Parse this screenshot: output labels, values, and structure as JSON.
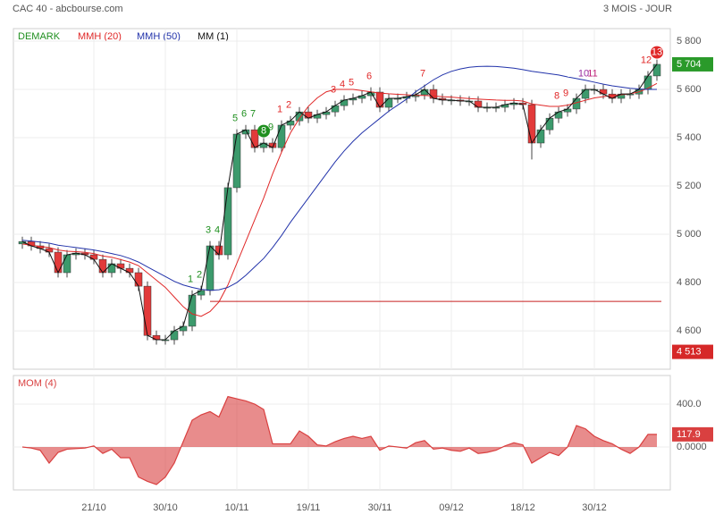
{
  "chart_data": [
    {
      "type": "candlestick",
      "title": "CAC 40 - abcbourse.com",
      "subtitle": "3 MOIS - JOUR",
      "categories": [
        null,
        null,
        null,
        null,
        null,
        null,
        null,
        null,
        "21/10",
        null,
        null,
        null,
        null,
        null,
        null,
        null,
        "30/10",
        null,
        null,
        null,
        null,
        null,
        null,
        null,
        "10/11",
        null,
        null,
        null,
        null,
        null,
        null,
        null,
        "19/11",
        null,
        null,
        null,
        null,
        null,
        null,
        null,
        "30/11",
        null,
        null,
        null,
        null,
        null,
        null,
        null,
        "09/12",
        null,
        null,
        null,
        null,
        null,
        null,
        null,
        "18/12",
        null,
        null,
        null,
        null,
        null,
        null,
        null,
        "30/12",
        null,
        null,
        null,
        null,
        null,
        null,
        null
      ],
      "open": [
        4960,
        4970,
        4952,
        4941,
        4926,
        4841,
        4915,
        4922,
        4915,
        4896,
        4841,
        4878,
        4859,
        4841,
        4785,
        4581,
        4563,
        4563,
        4600,
        4619,
        4748,
        4767,
        4952,
        4915,
        5193,
        5415,
        5433,
        5359,
        5378,
        5359,
        5452,
        5470,
        5507,
        5481,
        5496,
        5507,
        5533,
        5556,
        5563,
        5574,
        5589,
        5526,
        5563,
        5563,
        5570,
        5578,
        5600,
        5563,
        5556,
        5556,
        5552,
        5552,
        5526,
        5526,
        5526,
        5537,
        5544,
        5537,
        5378,
        5433,
        5481,
        5507,
        5519,
        5563,
        5600,
        5600,
        5581,
        5563,
        5581,
        5581,
        5600,
        5656
      ],
      "high": [
        4990,
        4990,
        4972,
        4961,
        4946,
        4935,
        4942,
        4942,
        4935,
        4916,
        4898,
        4898,
        4879,
        4861,
        4805,
        4601,
        4583,
        4620,
        4639,
        4768,
        4787,
        4972,
        4972,
        5213,
        5435,
        5453,
        5453,
        5398,
        5398,
        5472,
        5490,
        5527,
        5527,
        5516,
        5527,
        5553,
        5576,
        5583,
        5594,
        5609,
        5609,
        5583,
        5583,
        5590,
        5598,
        5620,
        5620,
        5583,
        5576,
        5576,
        5572,
        5572,
        5546,
        5546,
        5557,
        5564,
        5564,
        5557,
        5453,
        5501,
        5527,
        5539,
        5583,
        5620,
        5620,
        5620,
        5601,
        5601,
        5601,
        5620,
        5676,
        5724
      ],
      "low": [
        4940,
        4932,
        4921,
        4906,
        4821,
        4821,
        4895,
        4895,
        4876,
        4821,
        4821,
        4839,
        4821,
        4765,
        4561,
        4543,
        4543,
        4543,
        4580,
        4599,
        4728,
        4747,
        4895,
        4895,
        5173,
        5395,
        5339,
        5339,
        5339,
        5339,
        5432,
        5450,
        5461,
        5461,
        5476,
        5487,
        5513,
        5536,
        5543,
        5554,
        5506,
        5506,
        5543,
        5543,
        5550,
        5558,
        5543,
        5536,
        5536,
        5532,
        5532,
        5506,
        5506,
        5506,
        5506,
        5517,
        5517,
        5310,
        5358,
        5413,
        5461,
        5487,
        5499,
        5543,
        5580,
        5561,
        5543,
        5543,
        5561,
        5561,
        5580,
        5636
      ],
      "close": [
        4970,
        4952,
        4941,
        4926,
        4841,
        4915,
        4922,
        4915,
        4896,
        4841,
        4878,
        4859,
        4841,
        4785,
        4581,
        4563,
        4563,
        4600,
        4619,
        4748,
        4767,
        4952,
        4915,
        5193,
        5415,
        5433,
        5359,
        5378,
        5359,
        5452,
        5470,
        5507,
        5481,
        5496,
        5507,
        5533,
        5556,
        5563,
        5574,
        5589,
        5526,
        5563,
        5563,
        5570,
        5578,
        5600,
        5563,
        5556,
        5556,
        5552,
        5552,
        5526,
        5526,
        5526,
        5537,
        5544,
        5537,
        5378,
        5433,
        5481,
        5507,
        5519,
        5563,
        5600,
        5600,
        5581,
        5563,
        5581,
        5581,
        5600,
        5656,
        5704
      ],
      "up_color": "#3c9a6c",
      "down_color": "#e23a3a",
      "close_series": {
        "name": "MM (1)",
        "color": "#111111"
      },
      "demark_title": "DEMARK",
      "demark_title_color": "#1f8f1f",
      "series": [
        {
          "name": "MMH (20)",
          "color": "#e02828",
          "values": [
            4960,
            4955,
            4950,
            4945,
            4935,
            4930,
            4928,
            4925,
            4920,
            4910,
            4905,
            4895,
            4885,
            4870,
            4840,
            4810,
            4780,
            4740,
            4700,
            4670,
            4660,
            4680,
            4720,
            4790,
            4880,
            4970,
            5060,
            5150,
            5250,
            5340,
            5420,
            5480,
            5530,
            5565,
            5590,
            5600,
            5600,
            5600,
            5595,
            5590,
            5585,
            5582,
            5580,
            5578,
            5575,
            5575,
            5573,
            5570,
            5568,
            5565,
            5562,
            5560,
            5558,
            5556,
            5555,
            5555,
            5552,
            5540,
            5535,
            5530,
            5530,
            5535,
            5545,
            5555,
            5565,
            5570,
            5575,
            5578,
            5582,
            5590,
            5605,
            5625
          ]
        },
        {
          "name": "MMH (50)",
          "color": "#2233aa",
          "values": [
            4975,
            4972,
            4968,
            4963,
            4955,
            4950,
            4945,
            4940,
            4935,
            4928,
            4920,
            4912,
            4900,
            4885,
            4865,
            4845,
            4825,
            4805,
            4790,
            4780,
            4772,
            4768,
            4770,
            4780,
            4800,
            4830,
            4865,
            4900,
            4945,
            4995,
            5050,
            5100,
            5150,
            5200,
            5250,
            5300,
            5345,
            5385,
            5420,
            5450,
            5480,
            5510,
            5535,
            5560,
            5590,
            5615,
            5640,
            5660,
            5675,
            5685,
            5692,
            5695,
            5696,
            5695,
            5692,
            5688,
            5682,
            5675,
            5670,
            5665,
            5660,
            5652,
            5645,
            5638,
            5630,
            5622,
            5615,
            5610,
            5605,
            5602,
            5600,
            5600
          ]
        }
      ],
      "demark": [
        {
          "index": 19,
          "label": "1",
          "color": "#1f8f1f"
        },
        {
          "index": 20,
          "label": "2",
          "color": "#1f8f1f"
        },
        {
          "index": 21,
          "label": "3",
          "color": "#1f8f1f"
        },
        {
          "index": 22,
          "label": "4",
          "color": "#1f8f1f"
        },
        {
          "index": 24,
          "label": "5",
          "color": "#1f8f1f"
        },
        {
          "index": 25,
          "label": "6",
          "color": "#1f8f1f"
        },
        {
          "index": 26,
          "label": "7",
          "color": "#1f8f1f"
        },
        {
          "index": 27,
          "label": "8",
          "color": "#1f8f1f",
          "circled": true
        },
        {
          "index": 28,
          "label": "9",
          "color": "#1f8f1f"
        },
        {
          "index": 29,
          "label": "1",
          "color": "#e02828"
        },
        {
          "index": 30,
          "label": "2",
          "color": "#e02828"
        },
        {
          "index": 35,
          "label": "3",
          "color": "#e02828"
        },
        {
          "index": 36,
          "label": "4",
          "color": "#e02828"
        },
        {
          "index": 37,
          "label": "5",
          "color": "#e02828"
        },
        {
          "index": 39,
          "label": "6",
          "color": "#e02828"
        },
        {
          "index": 45,
          "label": "7",
          "color": "#e02828"
        },
        {
          "index": 60,
          "label": "8",
          "color": "#e02828"
        },
        {
          "index": 61,
          "label": "9",
          "color": "#e02828"
        },
        {
          "index": 63,
          "label": "10",
          "color": "#9a2aa0"
        },
        {
          "index": 64,
          "label": "11",
          "color": "#c0207a"
        },
        {
          "index": 70,
          "label": "12",
          "color": "#e02828"
        },
        {
          "index": 71,
          "label": "13",
          "color": "#e02828",
          "circled": true
        }
      ],
      "hline": {
        "value": 4722,
        "start": 21,
        "color": "#c82020"
      },
      "last_label": {
        "value": 5704,
        "label": "5 704",
        "color": "#2a9a2a"
      },
      "low_label": {
        "value": 4513,
        "label": "4 513",
        "color": "#d62828"
      },
      "ylim": [
        4441,
        5852
      ],
      "yticks": [
        {
          "value": 4600,
          "label": "4 600"
        },
        {
          "value": 4800,
          "label": "4 800"
        },
        {
          "value": 5000,
          "label": "5 000"
        },
        {
          "value": 5200,
          "label": "5 200"
        },
        {
          "value": 5400,
          "label": "5 400"
        },
        {
          "value": 5600,
          "label": "5 600"
        },
        {
          "value": 5800,
          "label": "5 800"
        }
      ],
      "grid": true
    },
    {
      "type": "area",
      "title": "MOM (4)",
      "color": "#d94040",
      "values": [
        0,
        -10,
        -30,
        -150,
        -50,
        -20,
        -15,
        -10,
        10,
        -60,
        -20,
        -100,
        -100,
        -280,
        -320,
        -350,
        -280,
        -150,
        50,
        250,
        300,
        330,
        280,
        470,
        450,
        430,
        400,
        350,
        30,
        30,
        30,
        150,
        100,
        20,
        10,
        50,
        80,
        100,
        80,
        100,
        -30,
        10,
        0,
        -10,
        40,
        60,
        -20,
        -10,
        -30,
        -40,
        -10,
        -60,
        -50,
        -30,
        10,
        40,
        20,
        -150,
        -100,
        -50,
        -80,
        0,
        200,
        170,
        100,
        60,
        30,
        -20,
        -60,
        0,
        117.9,
        117.9
      ],
      "ylim": [
        -400,
        667
      ],
      "yticks": [
        {
          "value": 0,
          "label": "0.0000"
        },
        {
          "value": 400,
          "label": "400.0"
        }
      ],
      "grid": true
    }
  ]
}
